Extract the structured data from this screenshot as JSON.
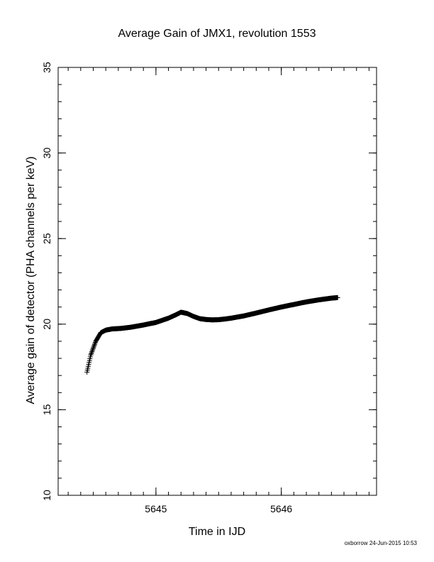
{
  "chart_data": {
    "type": "scatter",
    "title": "Average Gain of JMX1, revolution 1553",
    "xlabel": "Time in IJD",
    "ylabel": "Average gain of detector (PHA channels per keV)",
    "xlim": [
      5644.22,
      5646.76
    ],
    "ylim": [
      10,
      35
    ],
    "xticks": [
      5645,
      5646
    ],
    "yticks": [
      10,
      15,
      20,
      25,
      30,
      35
    ],
    "x_minor_step": 0.1,
    "y_minor_step": 1,
    "marker": "plus",
    "series": [
      {
        "x": [
          5644.45,
          5644.48,
          5644.52,
          5644.56,
          5644.6,
          5644.65,
          5644.72,
          5644.8,
          5644.9,
          5645.0,
          5645.1,
          5645.16,
          5645.2,
          5645.25,
          5645.3,
          5645.35,
          5645.4,
          5645.45,
          5645.5,
          5645.55,
          5645.6,
          5645.7,
          5645.8,
          5645.9,
          5646.0,
          5646.1,
          5646.2,
          5646.3,
          5646.4,
          5646.45
        ],
        "y": [
          17.2,
          18.2,
          19.0,
          19.5,
          19.65,
          19.72,
          19.75,
          19.82,
          19.95,
          20.1,
          20.35,
          20.55,
          20.7,
          20.62,
          20.45,
          20.32,
          20.27,
          20.25,
          20.26,
          20.3,
          20.35,
          20.48,
          20.65,
          20.83,
          21.0,
          21.15,
          21.3,
          21.42,
          21.52,
          21.55
        ]
      }
    ]
  },
  "footer": {
    "stamp": "oxborrow 24-Jun-2015 10:53"
  }
}
